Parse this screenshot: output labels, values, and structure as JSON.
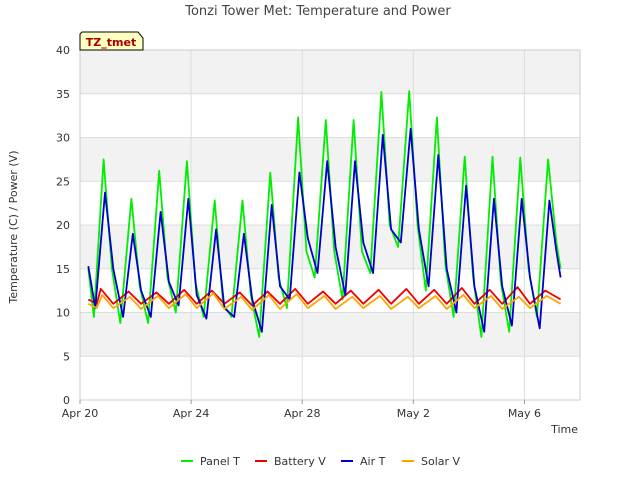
{
  "chart_data": {
    "type": "line",
    "title": "Tonzi Tower Met: Temperature and Power",
    "xlabel": "Time",
    "ylabel": "Temperature (C) / Power (V)",
    "site_label": "TZ_tmet",
    "xlim": [
      0,
      18
    ],
    "ylim": [
      0,
      40
    ],
    "x_ticks": [
      {
        "x": 0,
        "label": "Apr 20"
      },
      {
        "x": 4,
        "label": "Apr 24"
      },
      {
        "x": 8,
        "label": "Apr 28"
      },
      {
        "x": 12,
        "label": "May 2"
      },
      {
        "x": 16,
        "label": "May 6"
      }
    ],
    "y_ticks": [
      0,
      5,
      10,
      15,
      20,
      25,
      30,
      35,
      40
    ],
    "grid": true,
    "legend_position": "bottom",
    "series": [
      {
        "name": "Panel T",
        "color": "#00ee00",
        "x": [
          0.3,
          0.5,
          0.85,
          1.15,
          1.45,
          1.85,
          2.15,
          2.45,
          2.85,
          3.15,
          3.45,
          3.85,
          4.15,
          4.45,
          4.85,
          5.15,
          5.45,
          5.85,
          6.15,
          6.45,
          6.85,
          7.15,
          7.45,
          7.85,
          8.15,
          8.45,
          8.85,
          9.15,
          9.45,
          9.85,
          10.15,
          10.45,
          10.85,
          11.15,
          11.45,
          11.85,
          12.15,
          12.45,
          12.85,
          13.15,
          13.45,
          13.85,
          14.15,
          14.45,
          14.85,
          15.15,
          15.45,
          15.85,
          16.15,
          16.45,
          16.85,
          17.15,
          17.3
        ],
        "y": [
          15,
          9.5,
          27.5,
          15,
          8.8,
          23,
          13,
          8.8,
          26.2,
          14,
          10,
          27.3,
          13.5,
          9.5,
          22.8,
          11,
          9.5,
          22.8,
          12,
          7.2,
          26,
          14,
          10.5,
          32.3,
          17,
          14,
          32,
          17,
          11.5,
          32,
          17,
          14.5,
          35.2,
          20,
          17.5,
          35.3,
          20,
          12.5,
          32.3,
          15.5,
          9.5,
          27.8,
          14,
          7.2,
          27.8,
          13.5,
          7.8,
          27.7,
          15,
          9.5,
          27.5,
          18,
          15
        ]
      },
      {
        "name": "Battery V",
        "color": "#ee0000",
        "x": [
          0.3,
          0.6,
          0.75,
          1.2,
          1.75,
          2.2,
          2.75,
          3.2,
          3.75,
          4.2,
          4.75,
          5.2,
          5.75,
          6.2,
          6.75,
          7.2,
          7.75,
          8.2,
          8.75,
          9.2,
          9.75,
          10.2,
          10.75,
          11.2,
          11.75,
          12.2,
          12.75,
          13.2,
          13.75,
          14.2,
          14.75,
          15.2,
          15.75,
          16.2,
          16.75,
          17.3
        ],
        "y": [
          11.5,
          11,
          12.7,
          11,
          12.4,
          11,
          12.3,
          11,
          12.6,
          11,
          12.5,
          11,
          12.3,
          10.8,
          12.4,
          11,
          12.7,
          11,
          12.4,
          11,
          12.5,
          11,
          12.6,
          11,
          12.7,
          11,
          12.6,
          11,
          12.8,
          11,
          12.6,
          11,
          12.9,
          11,
          12.5,
          11.5
        ]
      },
      {
        "name": "Air T",
        "color": "#0000cc",
        "x": [
          0.3,
          0.55,
          0.9,
          1.2,
          1.55,
          1.9,
          2.2,
          2.55,
          2.9,
          3.2,
          3.55,
          3.9,
          4.2,
          4.55,
          4.9,
          5.2,
          5.55,
          5.9,
          6.2,
          6.55,
          6.9,
          7.2,
          7.55,
          7.9,
          8.2,
          8.55,
          8.9,
          9.2,
          9.55,
          9.9,
          10.2,
          10.55,
          10.9,
          11.2,
          11.55,
          11.9,
          12.2,
          12.55,
          12.9,
          13.2,
          13.55,
          13.9,
          14.2,
          14.55,
          14.9,
          15.2,
          15.55,
          15.9,
          16.2,
          16.55,
          16.9,
          17.15,
          17.3
        ],
        "y": [
          15.3,
          10.5,
          23.7,
          15,
          9.5,
          19,
          12.5,
          9.5,
          21.5,
          13.5,
          10.8,
          23,
          12,
          9.3,
          19.5,
          10.5,
          9.5,
          19,
          11.5,
          7.8,
          22.3,
          13,
          11.5,
          26,
          18.5,
          14.5,
          27.3,
          17.5,
          12,
          27.3,
          18,
          14.5,
          30.3,
          19.5,
          18,
          31,
          19.5,
          13,
          28,
          15,
          10,
          24.5,
          13,
          7.8,
          23,
          13,
          8.5,
          23,
          14,
          8.2,
          22.8,
          17,
          14
        ]
      },
      {
        "name": "Solar V",
        "color": "#ffa500",
        "x": [
          0.3,
          0.6,
          0.8,
          1.2,
          1.8,
          2.2,
          2.8,
          3.2,
          3.8,
          4.2,
          4.8,
          5.2,
          5.8,
          6.2,
          6.8,
          7.2,
          7.8,
          8.2,
          8.8,
          9.2,
          9.8,
          10.2,
          10.8,
          11.2,
          11.8,
          12.2,
          12.8,
          13.2,
          13.8,
          14.2,
          14.8,
          15.2,
          15.8,
          16.2,
          16.8,
          17.3
        ],
        "y": [
          11,
          10.5,
          12,
          10.5,
          11.8,
          10.4,
          11.9,
          10.5,
          12.1,
          10.5,
          12.2,
          10.4,
          11.8,
          10.3,
          12,
          10.4,
          12.1,
          10.5,
          11.9,
          10.4,
          11.8,
          10.5,
          11.9,
          10.4,
          11.8,
          10.5,
          11.9,
          10.4,
          12,
          10.5,
          11.9,
          10.4,
          11.8,
          10.5,
          11.9,
          11
        ]
      }
    ]
  }
}
